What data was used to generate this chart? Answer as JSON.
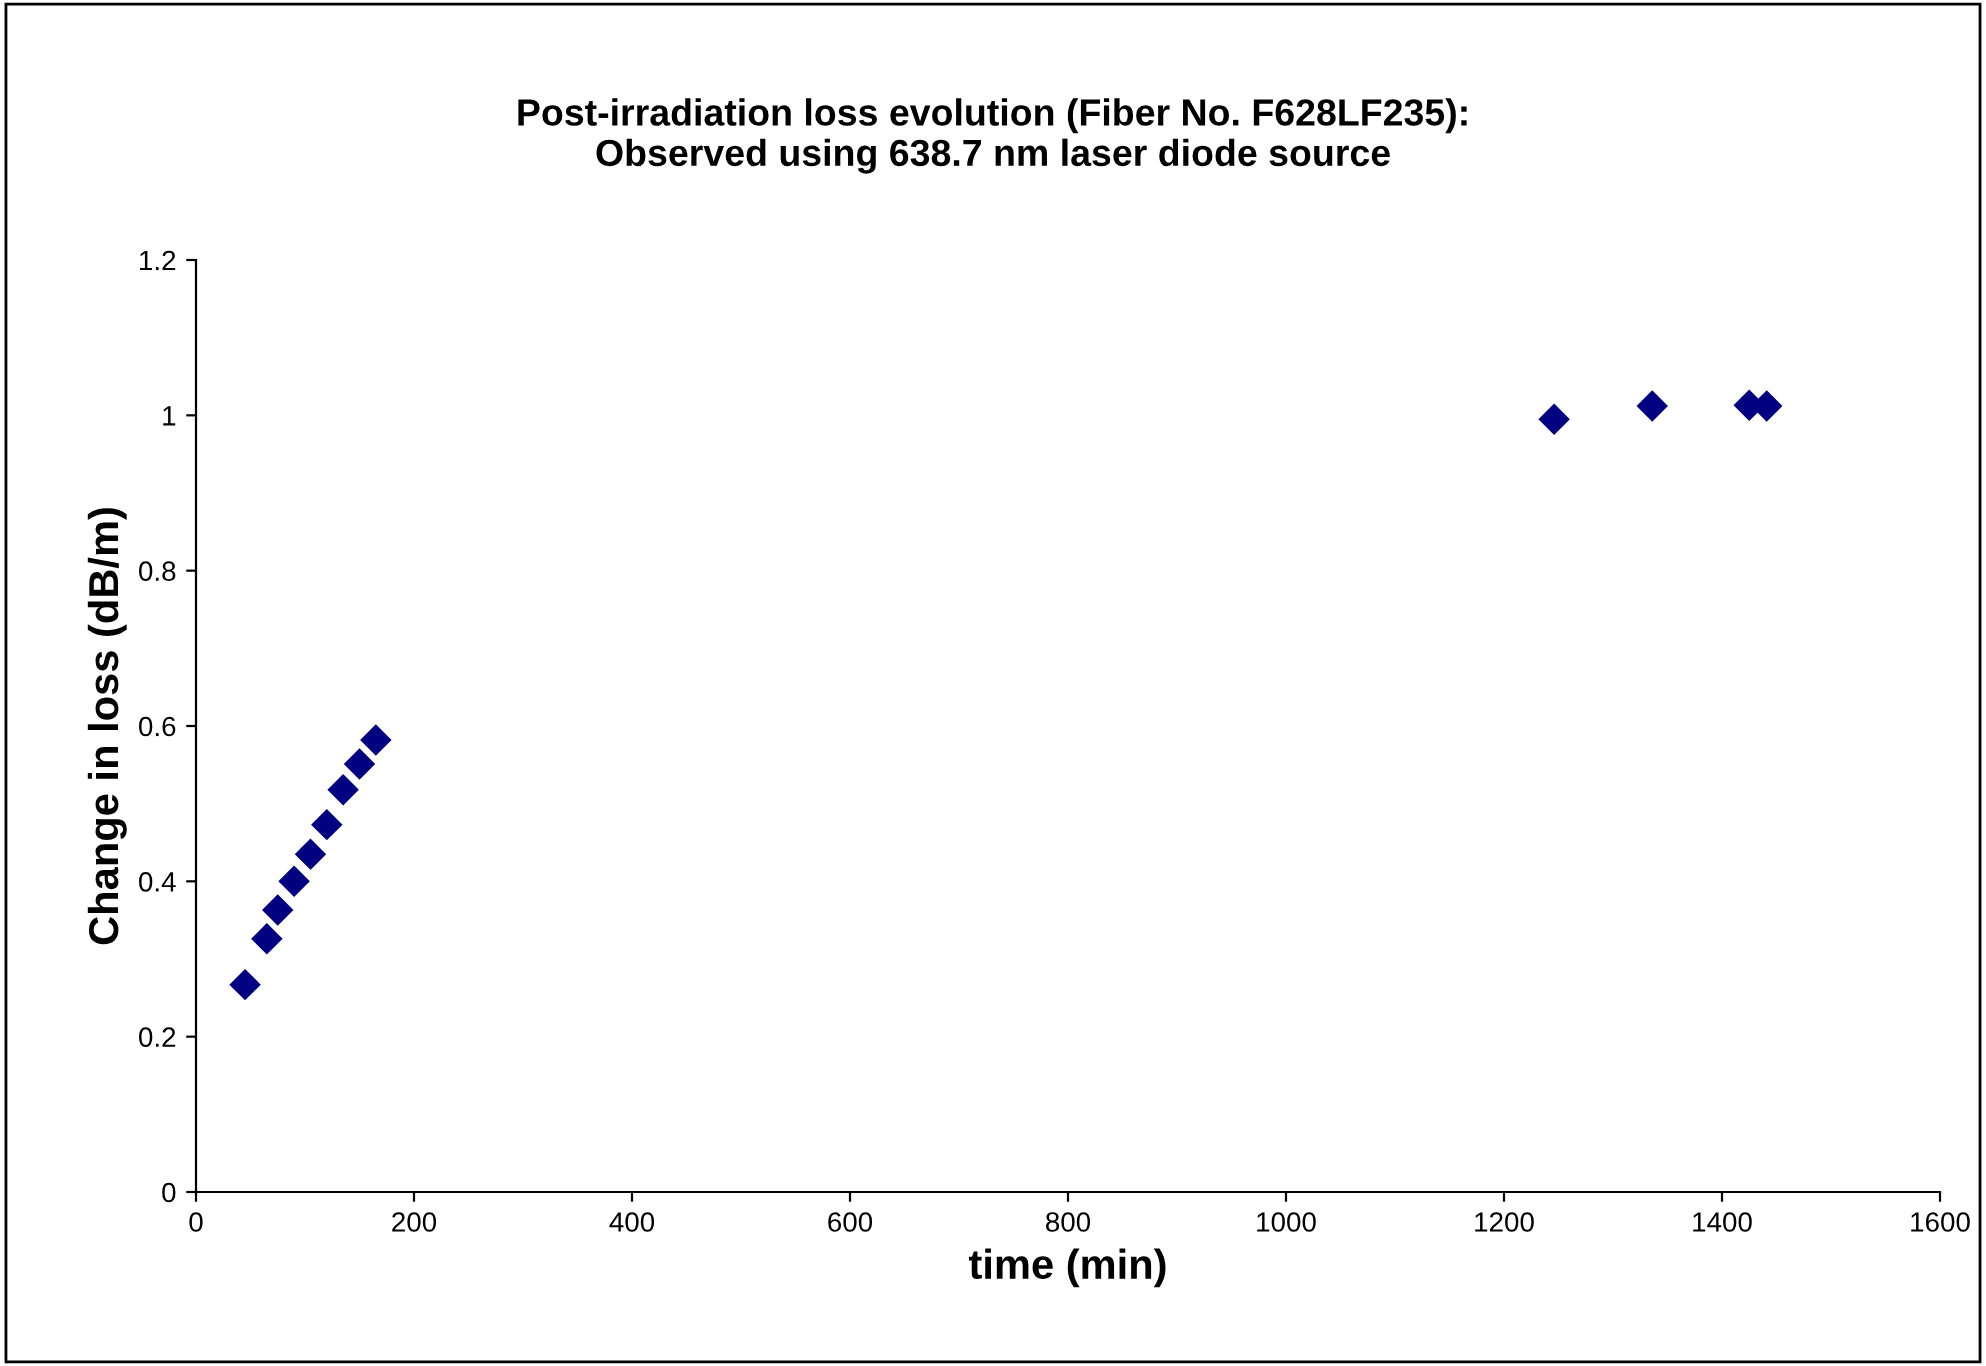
{
  "chart_data": {
    "type": "scatter",
    "title": "Post-irradiation loss evolution (Fiber No. F628LF235):\nObserved using 638.7 nm laser diode source",
    "xlabel": "time (min)",
    "ylabel": "Change in loss (dB/m)",
    "series": [
      {
        "color": "#000080",
        "x": [
          45,
          65,
          75,
          90,
          105,
          120,
          135,
          150,
          165,
          1246,
          1336,
          1425,
          1441
        ],
        "values": [
          0.267,
          0.326,
          0.363,
          0.4,
          0.435,
          0.473,
          0.518,
          0.551,
          0.582,
          0.995,
          1.012,
          1.013,
          1.012
        ]
      }
    ],
    "xlim": [
      0,
      1600
    ],
    "xticks": [
      0,
      200,
      400,
      600,
      800,
      1000,
      1200,
      1400,
      1600
    ],
    "ylim": [
      0,
      1.2
    ],
    "yticks": [
      0,
      0.2,
      0.4,
      0.6,
      0.8,
      1,
      1.2
    ],
    "marker": "diamond",
    "grid": false,
    "legend": false
  }
}
